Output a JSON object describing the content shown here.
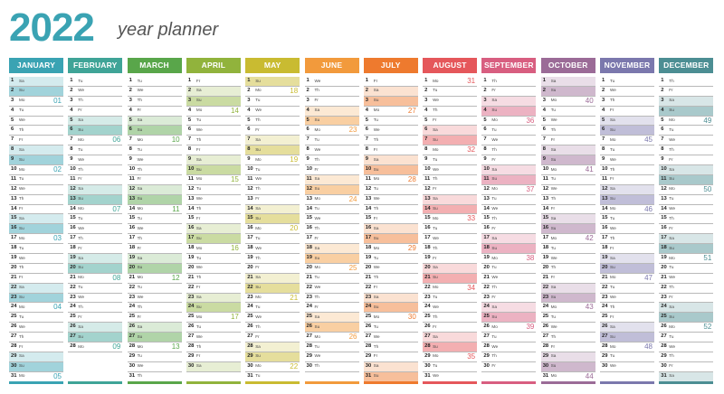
{
  "header": {
    "year": "2022",
    "subtitle": "year planner"
  },
  "weekday_abbr": [
    "Mo",
    "Tu",
    "We",
    "Th",
    "Fr",
    "Sa",
    "Su"
  ],
  "months": [
    {
      "name": "JANUARY",
      "color": "#3aa3b3",
      "days": 31,
      "start": 5
    },
    {
      "name": "FEBRUARY",
      "color": "#3fa497",
      "days": 28,
      "start": 1
    },
    {
      "name": "MARCH",
      "color": "#59a64a",
      "days": 31,
      "start": 1
    },
    {
      "name": "APRIL",
      "color": "#91b33c",
      "days": 30,
      "start": 4
    },
    {
      "name": "MAY",
      "color": "#c9bb31",
      "days": 31,
      "start": 6
    },
    {
      "name": "JUNE",
      "color": "#f29a3c",
      "days": 30,
      "start": 2
    },
    {
      "name": "JULY",
      "color": "#ee7a2e",
      "days": 31,
      "start": 4
    },
    {
      "name": "AUGUST",
      "color": "#e5575b",
      "days": 31,
      "start": 0
    },
    {
      "name": "SEPTEMBER",
      "color": "#d85e80",
      "days": 30,
      "start": 3
    },
    {
      "name": "OCTOBER",
      "color": "#9b6b97",
      "days": 31,
      "start": 5
    },
    {
      "name": "NOVEMBER",
      "color": "#7b78ad",
      "days": 30,
      "start": 1
    },
    {
      "name": "DECEMBER",
      "color": "#4c8e93",
      "days": 31,
      "start": 3
    }
  ],
  "week_numbers": [
    [
      [
        3,
        "01"
      ],
      [
        10,
        "02"
      ],
      [
        17,
        "03"
      ],
      [
        24,
        "04"
      ],
      [
        31,
        "05"
      ]
    ],
    [
      [
        7,
        "06"
      ],
      [
        14,
        "07"
      ],
      [
        21,
        "08"
      ],
      [
        28,
        "09"
      ]
    ],
    [
      [
        7,
        "10"
      ],
      [
        14,
        "11"
      ],
      [
        21,
        "12"
      ],
      [
        28,
        "13"
      ]
    ],
    [
      [
        4,
        "14"
      ],
      [
        11,
        "15"
      ],
      [
        18,
        "16"
      ],
      [
        25,
        "17"
      ]
    ],
    [
      [
        2,
        "18"
      ],
      [
        9,
        "19"
      ],
      [
        16,
        "20"
      ],
      [
        23,
        "21"
      ],
      [
        30,
        "22"
      ]
    ],
    [
      [
        6,
        "23"
      ],
      [
        13,
        "24"
      ],
      [
        20,
        "25"
      ],
      [
        27,
        "26"
      ]
    ],
    [
      [
        4,
        "27"
      ],
      [
        11,
        "28"
      ],
      [
        18,
        "29"
      ],
      [
        25,
        "30"
      ]
    ],
    [
      [
        1,
        "31"
      ],
      [
        8,
        "32"
      ],
      [
        15,
        "33"
      ],
      [
        22,
        "34"
      ],
      [
        29,
        "35"
      ]
    ],
    [
      [
        5,
        "36"
      ],
      [
        12,
        "37"
      ],
      [
        19,
        "38"
      ],
      [
        26,
        "39"
      ]
    ],
    [
      [
        3,
        "40"
      ],
      [
        10,
        "41"
      ],
      [
        17,
        "42"
      ],
      [
        24,
        "43"
      ],
      [
        31,
        "44"
      ]
    ],
    [
      [
        7,
        "45"
      ],
      [
        14,
        "46"
      ],
      [
        21,
        "47"
      ],
      [
        28,
        "48"
      ]
    ],
    [
      [
        5,
        "49"
      ],
      [
        12,
        "50"
      ],
      [
        19,
        "51"
      ],
      [
        26,
        "52"
      ]
    ]
  ]
}
